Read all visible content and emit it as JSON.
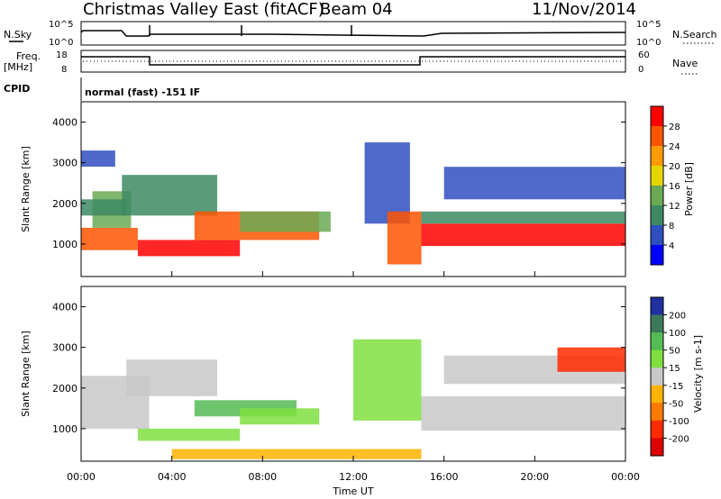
{
  "header": {
    "title": "Christmas Valley East (fitACF)",
    "beam": "Beam 04",
    "date": "11/Nov/2014"
  },
  "panels": {
    "nsky": {
      "left_label": "N.Sky",
      "right_label": "N.Search",
      "tick_top": "10^5",
      "tick_bottom": "10^0"
    },
    "freq": {
      "left_label_1": "Freq.",
      "left_label_2": "[MHz]",
      "tick_top": "18",
      "tick_bottom": "8",
      "right_label": "Nave",
      "right_tick_top": "60",
      "right_tick_bottom": "0"
    },
    "cpid": {
      "label": "CPID",
      "text": "normal (fast) -151 IF"
    }
  },
  "colors": {
    "power": [
      "#0000ff",
      "#2f4fbf",
      "#3d8a62",
      "#6aaa55",
      "#e6d600",
      "#ff9a00",
      "#ff5500",
      "#ff0000"
    ],
    "velocity": [
      "#2030a0",
      "#3a7a5a",
      "#55bb55",
      "#7fdf3f",
      "#c8c8c8",
      "#ffb300",
      "#ff7a00",
      "#ff2a00",
      "#dd0000"
    ]
  },
  "chart_data": [
    {
      "type": "heatmap",
      "ylabel": "Slant Range [km]",
      "yticks": [
        "1000",
        "2000",
        "3000",
        "4000"
      ],
      "ylim": [
        200,
        4500
      ],
      "colorbar_label": "Power [dB]",
      "colorbar_ticks": [
        "28",
        "24",
        "20",
        "16",
        "12",
        "8",
        "4"
      ],
      "bands": [
        {
          "t0": 0.0,
          "t1": 2.5,
          "r0": 850,
          "r1": 1400,
          "level": 6
        },
        {
          "t0": 0.5,
          "t1": 2.2,
          "r0": 1400,
          "r1": 2300,
          "level": 3
        },
        {
          "t0": 0.0,
          "t1": 2.0,
          "r0": 1700,
          "r1": 2100,
          "level": 2
        },
        {
          "t0": 0.0,
          "t1": 1.5,
          "r0": 2900,
          "r1": 3300,
          "level": 1
        },
        {
          "t0": 1.8,
          "t1": 6.0,
          "r0": 1700,
          "r1": 2700,
          "level": 2
        },
        {
          "t0": 2.5,
          "t1": 7.0,
          "r0": 700,
          "r1": 1100,
          "level": 7
        },
        {
          "t0": 5.0,
          "t1": 10.5,
          "r0": 1100,
          "r1": 1800,
          "level": 6
        },
        {
          "t0": 7.0,
          "t1": 11.0,
          "r0": 1300,
          "r1": 1800,
          "level": 3
        },
        {
          "t0": 12.5,
          "t1": 14.5,
          "r0": 1500,
          "r1": 3500,
          "level": 1
        },
        {
          "t0": 13.5,
          "t1": 15.0,
          "r0": 500,
          "r1": 1800,
          "level": 6
        },
        {
          "t0": 15.0,
          "t1": 24.0,
          "r0": 950,
          "r1": 1500,
          "level": 7
        },
        {
          "t0": 15.0,
          "t1": 24.0,
          "r0": 1500,
          "r1": 1800,
          "level": 2
        },
        {
          "t0": 16.0,
          "t1": 24.0,
          "r0": 2100,
          "r1": 2900,
          "level": 1
        }
      ]
    },
    {
      "type": "heatmap",
      "ylabel": "Slant Range [km]",
      "yticks": [
        "1000",
        "2000",
        "3000",
        "4000"
      ],
      "ylim": [
        200,
        4500
      ],
      "colorbar_label": "Velocity [m s-1]",
      "colorbar_ticks": [
        "200",
        "100",
        "50",
        "15",
        "-15",
        "-50",
        "-100",
        "-200"
      ],
      "bands": [
        {
          "t0": 0.0,
          "t1": 3.0,
          "r0": 1000,
          "r1": 2300,
          "level": 4
        },
        {
          "t0": 2.0,
          "t1": 6.0,
          "r0": 1800,
          "r1": 2700,
          "level": 4
        },
        {
          "t0": 5.0,
          "t1": 9.5,
          "r0": 1300,
          "r1": 1700,
          "level": 2
        },
        {
          "t0": 7.0,
          "t1": 10.5,
          "r0": 1100,
          "r1": 1500,
          "level": 3
        },
        {
          "t0": 2.5,
          "t1": 7.0,
          "r0": 700,
          "r1": 1000,
          "level": 3
        },
        {
          "t0": 4.0,
          "t1": 15.0,
          "r0": 250,
          "r1": 500,
          "level": 5
        },
        {
          "t0": 12.0,
          "t1": 15.0,
          "r0": 1200,
          "r1": 3200,
          "level": 3
        },
        {
          "t0": 15.0,
          "t1": 24.0,
          "r0": 950,
          "r1": 1800,
          "level": 4
        },
        {
          "t0": 16.0,
          "t1": 24.0,
          "r0": 2100,
          "r1": 2800,
          "level": 4
        },
        {
          "t0": 21.0,
          "t1": 24.0,
          "r0": 2400,
          "r1": 3000,
          "level": 7
        }
      ]
    }
  ],
  "xaxis": {
    "label": "Time UT",
    "ticks": [
      "00:00",
      "04:00",
      "08:00",
      "12:00",
      "16:00",
      "20:00",
      "00:00"
    ],
    "range_hours": [
      0,
      24
    ]
  }
}
